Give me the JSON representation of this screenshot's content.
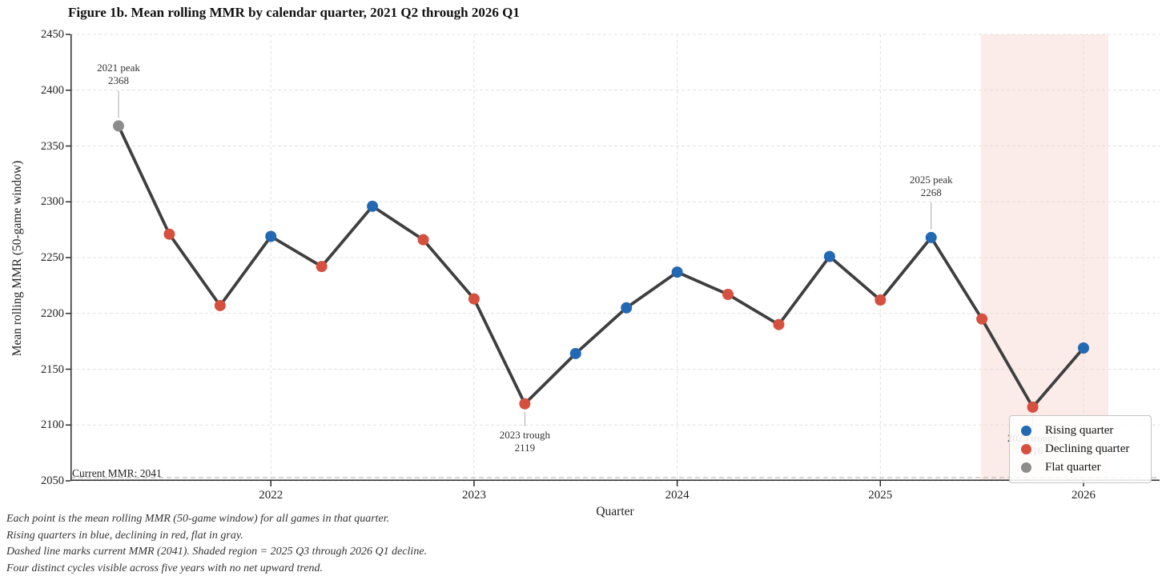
{
  "figure": {
    "title": "Figure 1b. Mean rolling MMR by calendar quarter, 2021 Q2 through 2026 Q1",
    "x_axis_label": "Quarter",
    "y_axis_label": "Mean rolling MMR (50-game window)",
    "current_mmr_label": "Current MMR: 2041",
    "footnotes": [
      "Each point is the mean rolling MMR (50-game window) for all games in that quarter.",
      "Rising quarters in blue, declining in red, flat in gray.",
      "Dashed line marks current MMR (2041). Shaded region = 2025 Q3 through 2026 Q1 decline.",
      "Four distinct cycles visible across five years with no net upward trend."
    ]
  },
  "legend": {
    "position": "lower right",
    "items": [
      {
        "label": "Rising quarter",
        "color_key": "rising"
      },
      {
        "label": "Declining quarter",
        "color_key": "declining"
      },
      {
        "label": "Flat quarter",
        "color_key": "flat"
      }
    ]
  },
  "colors": {
    "rising": "#2368b2",
    "declining": "#d5503f",
    "flat": "#8c8c8c",
    "line": "#3f3f3f",
    "grid": "#e0e0e0",
    "region_fill": "#fbece9",
    "spine": "#2b2b2b",
    "annotation_stem": "#a8a8a8",
    "current_line": "#bbbbbb"
  },
  "chart_data": {
    "type": "line",
    "title": "Figure 1b. Mean rolling MMR by calendar quarter, 2021 Q2 through 2026 Q1",
    "xlabel": "Quarter",
    "ylabel": "Mean rolling MMR (50-game window)",
    "ylim": [
      2050,
      2450
    ],
    "y_ticks": [
      2450,
      2400,
      2350,
      2300,
      2250,
      2200,
      2150,
      2100,
      2050
    ],
    "x_ticks": [
      {
        "label": "2022",
        "point_index": 3
      },
      {
        "label": "2023",
        "point_index": 7
      },
      {
        "label": "2024",
        "point_index": 11
      },
      {
        "label": "2025",
        "point_index": 15
      },
      {
        "label": "2026",
        "point_index": 19
      }
    ],
    "grid": true,
    "series_name": "Mean rolling MMR (50-game window)",
    "points": [
      {
        "quarter": "2021 Q2",
        "value": 2368,
        "trend": "flat"
      },
      {
        "quarter": "2021 Q3",
        "value": 2271,
        "trend": "declining"
      },
      {
        "quarter": "2021 Q4",
        "value": 2207,
        "trend": "declining"
      },
      {
        "quarter": "2022 Q1",
        "value": 2269,
        "trend": "rising"
      },
      {
        "quarter": "2022 Q2",
        "value": 2242,
        "trend": "declining"
      },
      {
        "quarter": "2022 Q3",
        "value": 2296,
        "trend": "rising"
      },
      {
        "quarter": "2022 Q4",
        "value": 2266,
        "trend": "declining"
      },
      {
        "quarter": "2023 Q1",
        "value": 2213,
        "trend": "declining"
      },
      {
        "quarter": "2023 Q2",
        "value": 2119,
        "trend": "declining"
      },
      {
        "quarter": "2023 Q3",
        "value": 2164,
        "trend": "rising"
      },
      {
        "quarter": "2023 Q4",
        "value": 2205,
        "trend": "rising"
      },
      {
        "quarter": "2024 Q1",
        "value": 2237,
        "trend": "rising"
      },
      {
        "quarter": "2024 Q2",
        "value": 2217,
        "trend": "declining"
      },
      {
        "quarter": "2024 Q3",
        "value": 2190,
        "trend": "declining"
      },
      {
        "quarter": "2024 Q4",
        "value": 2251,
        "trend": "rising"
      },
      {
        "quarter": "2025 Q1",
        "value": 2212,
        "trend": "declining"
      },
      {
        "quarter": "2025 Q2",
        "value": 2268,
        "trend": "rising"
      },
      {
        "quarter": "2025 Q3",
        "value": 2195,
        "trend": "declining"
      },
      {
        "quarter": "2025 Q4",
        "value": 2116,
        "trend": "declining"
      },
      {
        "quarter": "2026 Q1",
        "value": 2169,
        "trend": "rising"
      }
    ],
    "annotations": [
      {
        "label": "2021 peak",
        "value_label": "2368",
        "point_index": 0,
        "placement": "above"
      },
      {
        "label": "2023 trough",
        "value_label": "2119",
        "point_index": 8,
        "placement": "below"
      },
      {
        "label": "2025 peak",
        "value_label": "2268",
        "point_index": 16,
        "placement": "above"
      },
      {
        "label": "2025 trough",
        "value_label": "2116",
        "point_index": 18,
        "placement": "below"
      }
    ],
    "shaded_region": {
      "from_point_index": 17,
      "label": "2025 Q3 through 2026 Q1 decline"
    },
    "current_mmr": 2041
  }
}
